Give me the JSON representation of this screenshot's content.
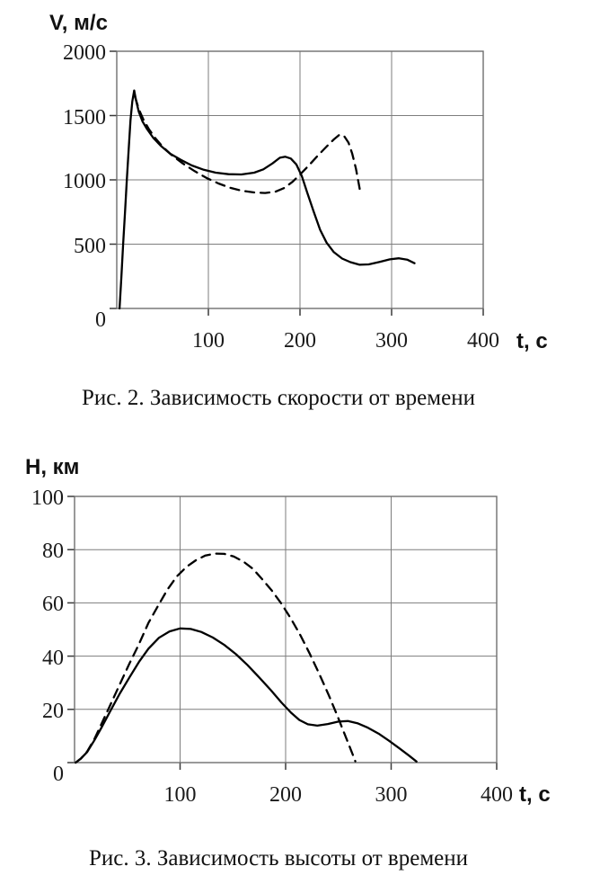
{
  "page": {
    "background": "#ffffff",
    "text_color": "#1a1a1a",
    "curve_color": "#000000",
    "grid_color": "#7d7d7d"
  },
  "chart_data": [
    {
      "type": "line",
      "title": "Рис. 2. Зависимость скорости от времени",
      "ylabel": "V, м/с",
      "xlabel": "t, с",
      "xlim": [
        0,
        400
      ],
      "ylim": [
        0,
        2000
      ],
      "x_ticks": [
        100,
        200,
        300,
        400
      ],
      "y_ticks": [
        0,
        500,
        1000,
        1500,
        2000
      ],
      "grid": true,
      "legend": "none",
      "series": [
        {
          "name": "solid",
          "style": "solid",
          "points": [
            [
              3,
              0
            ],
            [
              5,
              240
            ],
            [
              7,
              500
            ],
            [
              9,
              750
            ],
            [
              11,
              1000
            ],
            [
              13,
              1240
            ],
            [
              15,
              1465
            ],
            [
              17,
              1610
            ],
            [
              19,
              1695
            ],
            [
              21,
              1620
            ],
            [
              24,
              1530
            ],
            [
              28,
              1455
            ],
            [
              33,
              1395
            ],
            [
              40,
              1325
            ],
            [
              48,
              1265
            ],
            [
              58,
              1205
            ],
            [
              70,
              1155
            ],
            [
              82,
              1112
            ],
            [
              95,
              1078
            ],
            [
              108,
              1056
            ],
            [
              122,
              1044
            ],
            [
              136,
              1042
            ],
            [
              150,
              1056
            ],
            [
              160,
              1082
            ],
            [
              170,
              1128
            ],
            [
              178,
              1172
            ],
            [
              184,
              1180
            ],
            [
              190,
              1166
            ],
            [
              196,
              1120
            ],
            [
              202,
              1030
            ],
            [
              208,
              898
            ],
            [
              215,
              752
            ],
            [
              222,
              612
            ],
            [
              229,
              512
            ],
            [
              237,
              438
            ],
            [
              246,
              388
            ],
            [
              255,
              360
            ],
            [
              265,
              340
            ],
            [
              275,
              343
            ],
            [
              287,
              362
            ],
            [
              298,
              382
            ],
            [
              308,
              390
            ],
            [
              317,
              380
            ],
            [
              325,
              352
            ]
          ]
        },
        {
          "name": "dashed",
          "style": "dashed",
          "points": [
            [
              20,
              1645
            ],
            [
              24,
              1550
            ],
            [
              29,
              1470
            ],
            [
              35,
              1395
            ],
            [
              42,
              1325
            ],
            [
              50,
              1258
            ],
            [
              60,
              1192
            ],
            [
              72,
              1128
            ],
            [
              85,
              1068
            ],
            [
              98,
              1015
            ],
            [
              111,
              972
            ],
            [
              124,
              938
            ],
            [
              137,
              915
            ],
            [
              150,
              902
            ],
            [
              162,
              898
            ],
            [
              173,
              908
            ],
            [
              183,
              938
            ],
            [
              192,
              985
            ],
            [
              201,
              1048
            ],
            [
              210,
              1115
            ],
            [
              219,
              1185
            ],
            [
              228,
              1252
            ],
            [
              237,
              1315
            ],
            [
              243,
              1350
            ],
            [
              248,
              1342
            ],
            [
              253,
              1288
            ],
            [
              257,
              1205
            ],
            [
              261,
              1090
            ],
            [
              264,
              975
            ],
            [
              266,
              898
            ]
          ]
        }
      ]
    },
    {
      "type": "line",
      "title": "Рис. 3. Зависимость высоты от времени",
      "ylabel": "H, км",
      "xlabel": "t, с",
      "xlim": [
        0,
        400
      ],
      "ylim": [
        0,
        100
      ],
      "x_ticks": [
        100,
        200,
        300,
        400
      ],
      "y_ticks": [
        0,
        20,
        40,
        60,
        80,
        100
      ],
      "grid": true,
      "legend": "none",
      "series": [
        {
          "name": "solid",
          "style": "solid",
          "points": [
            [
              1,
              0
            ],
            [
              6,
              1.5
            ],
            [
              12,
              4
            ],
            [
              19,
              8.5
            ],
            [
              26,
              13.5
            ],
            [
              34,
              19.5
            ],
            [
              43,
              26
            ],
            [
              52,
              32
            ],
            [
              61,
              37.8
            ],
            [
              70,
              42.8
            ],
            [
              80,
              46.9
            ],
            [
              90,
              49.3
            ],
            [
              100,
              50.4
            ],
            [
              110,
              50.2
            ],
            [
              120,
              49.1
            ],
            [
              131,
              47
            ],
            [
              142,
              44.2
            ],
            [
              153,
              40.7
            ],
            [
              164,
              36.6
            ],
            [
              175,
              32
            ],
            [
              186,
              27.2
            ],
            [
              196,
              22.6
            ],
            [
              205,
              18.8
            ],
            [
              213,
              16
            ],
            [
              221,
              14.4
            ],
            [
              230,
              13.9
            ],
            [
              240,
              14.5
            ],
            [
              250,
              15.4
            ],
            [
              259,
              15.6
            ],
            [
              268,
              14.8
            ],
            [
              278,
              13.1
            ],
            [
              288,
              10.9
            ],
            [
              298,
              8.2
            ],
            [
              308,
              5.3
            ],
            [
              317,
              2.6
            ],
            [
              324,
              0.4
            ]
          ]
        },
        {
          "name": "dashed",
          "style": "dashed",
          "points": [
            [
              1,
              0
            ],
            [
              6,
              1.5
            ],
            [
              12,
              4.2
            ],
            [
              19,
              9
            ],
            [
              26,
              15
            ],
            [
              34,
              21.8
            ],
            [
              43,
              29.5
            ],
            [
              52,
              37.2
            ],
            [
              61,
              44.5
            ],
            [
              70,
              52.5
            ],
            [
              79,
              58.8
            ],
            [
              88,
              65
            ],
            [
              97,
              70
            ],
            [
              106,
              73.5
            ],
            [
              115,
              76
            ],
            [
              124,
              77.8
            ],
            [
              133,
              78.5
            ],
            [
              142,
              78.4
            ],
            [
              151,
              77.4
            ],
            [
              160,
              75.5
            ],
            [
              169,
              72.8
            ],
            [
              178,
              68.8
            ],
            [
              187,
              64.6
            ],
            [
              196,
              59.7
            ],
            [
              205,
              54.1
            ],
            [
              214,
              47.8
            ],
            [
              223,
              40.8
            ],
            [
              232,
              33.2
            ],
            [
              241,
              25.2
            ],
            [
              249,
              17.6
            ],
            [
              256,
              10.6
            ],
            [
              262,
              4.6
            ],
            [
              266,
              0.5
            ]
          ]
        }
      ]
    }
  ]
}
